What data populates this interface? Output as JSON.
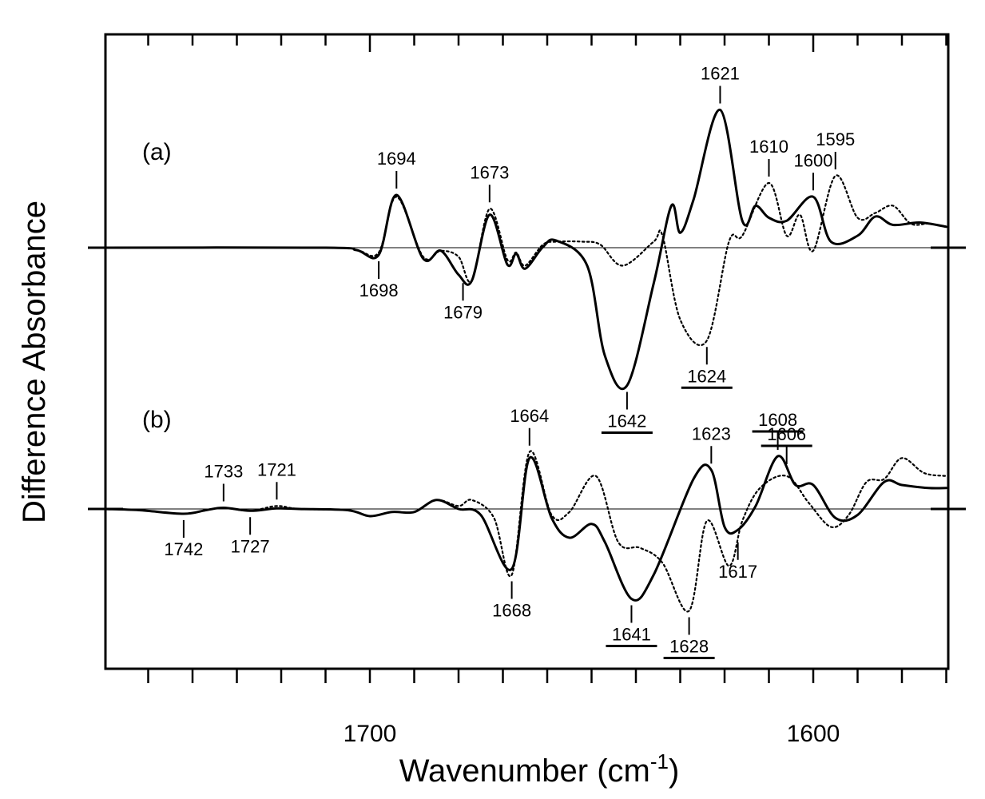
{
  "chart_data": {
    "type": "line",
    "xlabel": "Wavenumber (cm",
    "xlabel_superscript": "-1",
    "xlabel_close": ")",
    "ylabel": "Difference Absorbance",
    "x_direction": "reversed",
    "xlim": [
      1760,
      1570
    ],
    "x_tick_labels": [
      {
        "value": 1700,
        "label": "1700"
      },
      {
        "value": 1600,
        "label": "1600"
      }
    ],
    "x_minor_tick_step": 10,
    "y_tick_labels": "none",
    "grid": false,
    "legend": "none",
    "panels": [
      {
        "label": "(a)",
        "baseline_offset": 0,
        "series": [
          {
            "style": "solid",
            "points": [
              [
                1760,
                0
              ],
              [
                1710,
                0
              ],
              [
                1703,
                -0.04
              ],
              [
                1698,
                -0.12
              ],
              [
                1694,
                0.88
              ],
              [
                1688,
                -0.18
              ],
              [
                1684,
                -0.05
              ],
              [
                1680,
                -0.45
              ],
              [
                1677,
                -0.55
              ],
              [
                1673,
                0.55
              ],
              [
                1669,
                -0.28
              ],
              [
                1667,
                -0.1
              ],
              [
                1665,
                -0.35
              ],
              [
                1661,
                0.01
              ],
              [
                1658,
                0.12
              ],
              [
                1651,
                -0.3
              ],
              [
                1647,
                -1.8
              ],
              [
                1642,
                -2.3
              ],
              [
                1636,
                -0.6
              ],
              [
                1632,
                0.7
              ],
              [
                1630,
                0.25
              ],
              [
                1627,
                0.8
              ],
              [
                1621,
                2.3
              ],
              [
                1616,
                0.45
              ],
              [
                1613,
                0.7
              ],
              [
                1610,
                0.5
              ],
              [
                1606,
                0.45
              ],
              [
                1600,
                0.85
              ],
              [
                1596,
                0.1
              ],
              [
                1590,
                0.2
              ],
              [
                1586,
                0.52
              ],
              [
                1582,
                0.38
              ],
              [
                1576,
                0.42
              ],
              [
                1570,
                0.35
              ]
            ]
          },
          {
            "style": "dotted",
            "points": [
              [
                1760,
                0
              ],
              [
                1710,
                0
              ],
              [
                1703,
                -0.04
              ],
              [
                1698,
                -0.08
              ],
              [
                1694,
                0.85
              ],
              [
                1688,
                -0.15
              ],
              [
                1684,
                -0.05
              ],
              [
                1680,
                -0.15
              ],
              [
                1677,
                -0.55
              ],
              [
                1673,
                0.65
              ],
              [
                1669,
                -0.2
              ],
              [
                1667,
                -0.08
              ],
              [
                1665,
                -0.3
              ],
              [
                1661,
                0.05
              ],
              [
                1658,
                0.1
              ],
              [
                1652,
                0.1
              ],
              [
                1648,
                0.05
              ],
              [
                1643,
                -0.3
              ],
              [
                1636,
                0.1
              ],
              [
                1634,
                0.2
              ],
              [
                1630,
                -1.2
              ],
              [
                1624,
                -1.55
              ],
              [
                1619,
                0.1
              ],
              [
                1616,
                0.2
              ],
              [
                1610,
                1.08
              ],
              [
                1606,
                0.2
              ],
              [
                1603,
                0.55
              ],
              [
                1600,
                -0.05
              ],
              [
                1595,
                1.2
              ],
              [
                1590,
                0.5
              ],
              [
                1586,
                0.58
              ],
              [
                1582,
                0.7
              ],
              [
                1578,
                0.4
              ],
              [
                1574,
                0.4
              ],
              [
                1570,
                0.35
              ]
            ]
          }
        ],
        "annotations": [
          {
            "text": "1694",
            "x": 1694,
            "underlined": false
          },
          {
            "text": "1698",
            "x": 1698,
            "underlined": false
          },
          {
            "text": "1673",
            "x": 1673,
            "underlined": false
          },
          {
            "text": "1679",
            "x": 1679,
            "underlined": false
          },
          {
            "text": "1642",
            "x": 1642,
            "underlined": true
          },
          {
            "text": "1624",
            "x": 1624,
            "underlined": true
          },
          {
            "text": "1621",
            "x": 1621,
            "underlined": false
          },
          {
            "text": "1610",
            "x": 1610,
            "underlined": false
          },
          {
            "text": "1600",
            "x": 1600,
            "underlined": false
          },
          {
            "text": "1595",
            "x": 1595,
            "underlined": false
          }
        ]
      },
      {
        "label": "(b)",
        "baseline_offset": -4.3,
        "series": [
          {
            "style": "solid",
            "points": [
              [
                1760,
                0
              ],
              [
                1752,
                -0.02
              ],
              [
                1742,
                -0.08
              ],
              [
                1737,
                -0.02
              ],
              [
                1733,
                0.02
              ],
              [
                1727,
                -0.03
              ],
              [
                1721,
                0.01
              ],
              [
                1716,
                0
              ],
              [
                1705,
                -0.02
              ],
              [
                1700,
                -0.12
              ],
              [
                1695,
                -0.05
              ],
              [
                1690,
                -0.05
              ],
              [
                1685,
                0.15
              ],
              [
                1680,
                0
              ],
              [
                1675,
                -0.1
              ],
              [
                1668,
                -1.0
              ],
              [
                1664,
                0.85
              ],
              [
                1659,
                -0.15
              ],
              [
                1655,
                -0.48
              ],
              [
                1650,
                -0.25
              ],
              [
                1647,
                -0.55
              ],
              [
                1641,
                -1.5
              ],
              [
                1636,
                -1.1
              ],
              [
                1627,
                0.5
              ],
              [
                1623,
                0.65
              ],
              [
                1620,
                -0.3
              ],
              [
                1617,
                -0.35
              ],
              [
                1613,
                0.05
              ],
              [
                1608,
                0.88
              ],
              [
                1604,
                0.4
              ],
              [
                1600,
                0.4
              ],
              [
                1595,
                -0.15
              ],
              [
                1590,
                -0.1
              ],
              [
                1584,
                0.45
              ],
              [
                1580,
                0.4
              ],
              [
                1574,
                0.35
              ],
              [
                1570,
                0.35
              ]
            ]
          },
          {
            "style": "dotted",
            "points": [
              [
                1760,
                0
              ],
              [
                1752,
                -0.02
              ],
              [
                1742,
                -0.08
              ],
              [
                1737,
                -0.02
              ],
              [
                1733,
                0.02
              ],
              [
                1727,
                -0.03
              ],
              [
                1721,
                0.05
              ],
              [
                1716,
                0
              ],
              [
                1705,
                -0.02
              ],
              [
                1700,
                -0.12
              ],
              [
                1695,
                -0.05
              ],
              [
                1690,
                -0.05
              ],
              [
                1685,
                0.15
              ],
              [
                1680,
                0.05
              ],
              [
                1677,
                0.15
              ],
              [
                1672,
                -0.15
              ],
              [
                1668,
                -1.1
              ],
              [
                1664,
                0.95
              ],
              [
                1659,
                -0.1
              ],
              [
                1655,
                -0.05
              ],
              [
                1649,
                0.55
              ],
              [
                1644,
                -0.55
              ],
              [
                1639,
                -0.65
              ],
              [
                1634,
                -0.9
              ],
              [
                1628,
                -1.7
              ],
              [
                1624,
                -0.2
              ],
              [
                1619,
                -0.95
              ],
              [
                1616,
                -0.2
              ],
              [
                1612,
                0.35
              ],
              [
                1606,
                0.55
              ],
              [
                1601,
                0.1
              ],
              [
                1596,
                -0.3
              ],
              [
                1592,
                -0.1
              ],
              [
                1588,
                0.45
              ],
              [
                1584,
                0.5
              ],
              [
                1580,
                0.85
              ],
              [
                1575,
                0.6
              ],
              [
                1570,
                0.55
              ]
            ]
          }
        ],
        "annotations": [
          {
            "text": "1742",
            "x": 1742,
            "underlined": false
          },
          {
            "text": "1733",
            "x": 1733,
            "underlined": false
          },
          {
            "text": "1727",
            "x": 1727,
            "underlined": false
          },
          {
            "text": "1721",
            "x": 1721,
            "underlined": false
          },
          {
            "text": "1668",
            "x": 1668,
            "underlined": false
          },
          {
            "text": "1664",
            "x": 1664,
            "underlined": false
          },
          {
            "text": "1641",
            "x": 1641,
            "underlined": true
          },
          {
            "text": "1628",
            "x": 1628,
            "underlined": true
          },
          {
            "text": "1623",
            "x": 1623,
            "underlined": false
          },
          {
            "text": "1617",
            "x": 1617,
            "underlined": false
          },
          {
            "text": "1608",
            "x": 1608,
            "underlined": true
          },
          {
            "text": "1606",
            "x": 1606,
            "underlined": true
          }
        ]
      }
    ]
  }
}
